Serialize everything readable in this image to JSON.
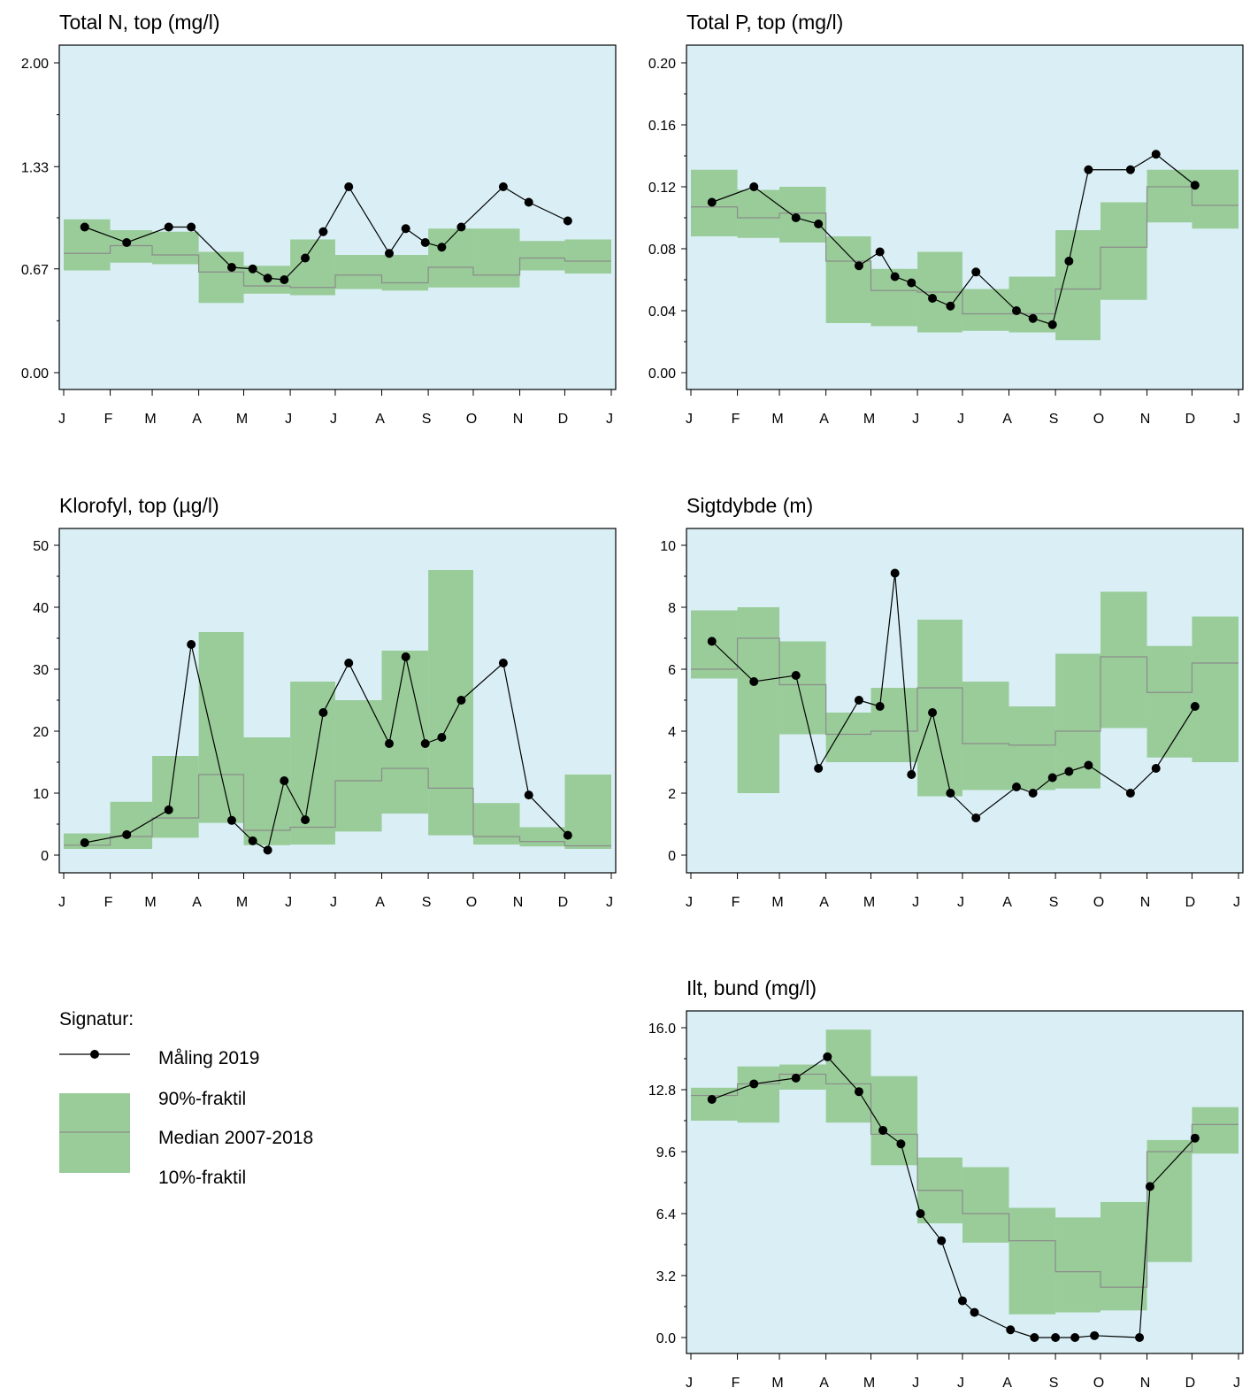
{
  "colors": {
    "plot_background": "#d9eff5",
    "band_fill": "#99cc99",
    "median_line": "#8c8c8c",
    "measurement": "#000000"
  },
  "month_ticks": [
    "J",
    "F",
    "M",
    "A",
    "M",
    "J",
    "J",
    "A",
    "S",
    "O",
    "N",
    "D",
    "J"
  ],
  "chart_data": [
    {
      "id": "total-n",
      "type": "line",
      "title": "Total N, top (mg/l)",
      "ylim": [
        0,
        2
      ],
      "yticks": [
        "0.00",
        "0.67",
        "1.33",
        "2.00"
      ],
      "ytick_values": [
        0,
        0.67,
        1.33,
        2.0
      ],
      "band": {
        "p90": [
          0.99,
          0.92,
          0.91,
          0.78,
          0.69,
          0.86,
          0.76,
          0.76,
          0.93,
          0.93,
          0.85,
          0.86
        ],
        "median": [
          0.77,
          0.82,
          0.76,
          0.65,
          0.56,
          0.55,
          0.63,
          0.58,
          0.68,
          0.63,
          0.74,
          0.72
        ],
        "p10": [
          0.66,
          0.71,
          0.7,
          0.45,
          0.51,
          0.5,
          0.54,
          0.53,
          0.55,
          0.55,
          0.66,
          0.64
        ]
      },
      "series": [
        {
          "x": [
            "2019-01-15",
            "2019-02-12",
            "2019-03-12",
            "2019-03-27",
            "2019-04-23",
            "2019-05-07",
            "2019-05-17",
            "2019-05-28",
            "2019-06-11",
            "2019-06-23",
            "2019-07-10",
            "2019-08-06",
            "2019-08-17",
            "2019-08-30",
            "2019-09-10",
            "2019-09-23",
            "2019-10-21",
            "2019-11-07",
            "2019-12-03"
          ],
          "y": [
            0.94,
            0.84,
            0.94,
            0.94,
            0.68,
            0.67,
            0.61,
            0.6,
            0.74,
            0.91,
            1.2,
            0.77,
            0.93,
            0.84,
            0.81,
            0.94,
            1.2,
            1.1,
            0.98
          ]
        }
      ]
    },
    {
      "id": "total-p",
      "type": "line",
      "title": "Total P, top (mg/l)",
      "ylim": [
        0,
        0.2
      ],
      "yticks": [
        "0.00",
        "0.04",
        "0.08",
        "0.12",
        "0.16",
        "0.20"
      ],
      "ytick_values": [
        0,
        0.04,
        0.08,
        0.12,
        0.16,
        0.2
      ],
      "band": {
        "p90": [
          0.131,
          0.118,
          0.12,
          0.088,
          0.067,
          0.078,
          0.054,
          0.062,
          0.092,
          0.11,
          0.131,
          0.131
        ],
        "median": [
          0.107,
          0.1,
          0.103,
          0.072,
          0.053,
          0.052,
          0.038,
          0.038,
          0.054,
          0.081,
          0.12,
          0.108
        ],
        "p10": [
          0.088,
          0.087,
          0.084,
          0.032,
          0.03,
          0.026,
          0.027,
          0.026,
          0.021,
          0.047,
          0.097,
          0.093
        ]
      },
      "series": [
        {
          "x": [
            "2019-01-15",
            "2019-02-12",
            "2019-03-12",
            "2019-03-27",
            "2019-04-23",
            "2019-05-07",
            "2019-05-17",
            "2019-05-28",
            "2019-06-11",
            "2019-06-23",
            "2019-07-10",
            "2019-08-06",
            "2019-08-17",
            "2019-08-30",
            "2019-09-10",
            "2019-09-23",
            "2019-10-21",
            "2019-11-07",
            "2019-12-03"
          ],
          "y": [
            0.11,
            0.12,
            0.1,
            0.096,
            0.069,
            0.078,
            0.062,
            0.058,
            0.048,
            0.043,
            0.065,
            0.04,
            0.035,
            0.031,
            0.072,
            0.131,
            0.131,
            0.141,
            0.121
          ]
        }
      ]
    },
    {
      "id": "klorofyl",
      "type": "line",
      "title": "Klorofyl, top (µg/l)",
      "ylim": [
        -2.7,
        50
      ],
      "yticks": [
        "0",
        "10",
        "20",
        "30",
        "40",
        "50"
      ],
      "ytick_values": [
        0,
        10,
        20,
        30,
        40,
        50
      ],
      "band": {
        "p90": [
          3.5,
          8.6,
          16.0,
          36.0,
          19.0,
          28.0,
          25.0,
          33.0,
          46.0,
          8.4,
          4.5,
          13.0
        ],
        "median": [
          1.6,
          3.0,
          6.0,
          13.0,
          4.0,
          4.5,
          12.0,
          14.0,
          10.8,
          3.0,
          2.2,
          1.5
        ],
        "p10": [
          1.0,
          1.0,
          2.8,
          5.2,
          1.6,
          1.7,
          3.8,
          6.7,
          3.2,
          1.7,
          1.4,
          1.0
        ]
      },
      "series": [
        {
          "x": [
            "2019-01-15",
            "2019-02-12",
            "2019-03-12",
            "2019-03-27",
            "2019-04-23",
            "2019-05-07",
            "2019-05-17",
            "2019-05-28",
            "2019-06-11",
            "2019-06-23",
            "2019-07-10",
            "2019-08-06",
            "2019-08-17",
            "2019-08-30",
            "2019-09-10",
            "2019-09-23",
            "2019-10-21",
            "2019-11-07",
            "2019-12-03"
          ],
          "y": [
            2.0,
            3.3,
            7.3,
            34.0,
            5.6,
            2.3,
            0.8,
            12.0,
            5.7,
            23.0,
            31.0,
            18.0,
            32.0,
            18.0,
            19.0,
            25.0,
            31.0,
            9.7,
            3.2
          ]
        }
      ]
    },
    {
      "id": "sigtdybde",
      "type": "line",
      "title": "Sigtdybde (m)",
      "ylim": [
        -0.54,
        10
      ],
      "yticks": [
        "0",
        "2",
        "4",
        "6",
        "8",
        "10"
      ],
      "ytick_values": [
        0,
        2,
        4,
        6,
        8,
        10
      ],
      "band": {
        "p90": [
          7.9,
          8.0,
          6.9,
          4.6,
          5.4,
          7.6,
          5.6,
          4.8,
          6.5,
          8.5,
          6.75,
          7.7
        ],
        "median": [
          6.0,
          7.0,
          5.5,
          3.9,
          4.0,
          5.4,
          3.6,
          3.55,
          4.0,
          6.4,
          5.25,
          6.2
        ],
        "p10": [
          5.7,
          2.0,
          3.9,
          3.0,
          3.0,
          1.9,
          2.1,
          2.1,
          2.15,
          4.1,
          3.15,
          3.0
        ]
      },
      "series": [
        {
          "x": [
            "2019-01-15",
            "2019-02-12",
            "2019-03-12",
            "2019-03-27",
            "2019-04-23",
            "2019-05-07",
            "2019-05-17",
            "2019-05-28",
            "2019-06-11",
            "2019-06-23",
            "2019-07-10",
            "2019-08-06",
            "2019-08-17",
            "2019-08-30",
            "2019-09-10",
            "2019-09-23",
            "2019-10-21",
            "2019-11-07",
            "2019-12-03"
          ],
          "y": [
            6.9,
            5.6,
            5.8,
            2.8,
            5.0,
            4.8,
            9.1,
            2.6,
            4.6,
            2.0,
            1.2,
            2.2,
            2.0,
            2.5,
            2.7,
            2.9,
            2.0,
            2.8,
            4.8
          ]
        }
      ]
    },
    {
      "id": "ilt",
      "type": "line",
      "title": "Ilt, bund (mg/l)",
      "ylim": [
        -0.86,
        16
      ],
      "yticks": [
        "0.0",
        "3.2",
        "6.4",
        "9.6",
        "12.8",
        "16.0"
      ],
      "ytick_values": [
        0,
        3.2,
        6.4,
        9.6,
        12.8,
        16.0
      ],
      "band": {
        "p90": [
          12.9,
          14.0,
          14.1,
          15.9,
          13.5,
          9.3,
          8.8,
          6.7,
          6.2,
          7.0,
          10.2,
          11.9
        ],
        "median": [
          12.5,
          13.1,
          13.6,
          13.1,
          10.5,
          7.6,
          6.4,
          5.0,
          3.4,
          2.6,
          9.6,
          11.0
        ],
        "p10": [
          11.2,
          11.1,
          12.8,
          11.1,
          8.9,
          5.9,
          4.9,
          1.2,
          1.3,
          1.4,
          3.9,
          9.5
        ]
      },
      "series": [
        {
          "x": [
            "2019-01-15",
            "2019-02-12",
            "2019-03-12",
            "2019-04-02",
            "2019-04-23",
            "2019-05-09",
            "2019-05-21",
            "2019-06-03",
            "2019-06-17",
            "2019-07-01",
            "2019-07-09",
            "2019-08-02",
            "2019-08-18",
            "2019-09-01",
            "2019-09-14",
            "2019-09-27",
            "2019-10-27",
            "2019-11-03",
            "2019-12-03"
          ],
          "y": [
            12.3,
            13.1,
            13.4,
            14.5,
            12.7,
            10.7,
            10.0,
            6.4,
            5.0,
            1.9,
            1.3,
            0.4,
            0.0,
            0.0,
            0.0,
            0.1,
            0.0,
            7.8,
            10.3
          ]
        }
      ]
    }
  ],
  "legend": {
    "heading": "Signatur:",
    "measurement_label": "Måling 2019",
    "p90_label": "90%-fraktil",
    "median_label": "Median 2007-2018",
    "p10_label": "10%-fraktil"
  }
}
